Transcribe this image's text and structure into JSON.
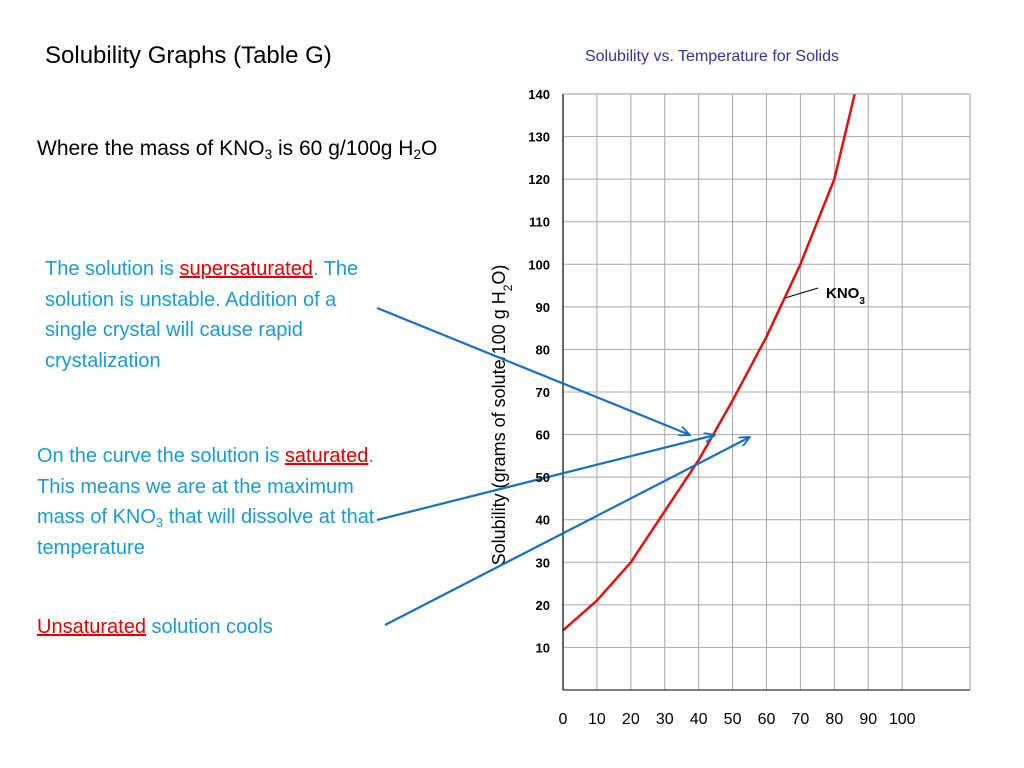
{
  "slide": {
    "title": "Solubility Graphs (Table G)",
    "condition": [
      "Where the mass of KNO",
      "3",
      " is 60 g/100g H",
      "2",
      "O"
    ],
    "notes": [
      {
        "parts": [
          "The solution is ",
          "supersaturated",
          ". The solution is unstable. Addition of a single crystal will cause rapid crystalization"
        ]
      },
      {
        "parts": [
          "On the curve the solution is ",
          "saturated",
          ". This means we are at the maximum mass of KNO",
          "3",
          " that will dissolve at that temperature"
        ]
      },
      {
        "parts": [
          "Unsaturated",
          " solution cools"
        ]
      }
    ]
  },
  "chart_data": {
    "type": "line",
    "title": "Solubility vs. Temperature for Solids",
    "ylabel": [
      "Solubility (grams of solute/100 g H",
      "2",
      "O)"
    ],
    "x": [
      0,
      10,
      20,
      30,
      40,
      50,
      60,
      70,
      80,
      86
    ],
    "series": [
      {
        "label": [
          "KNO",
          "3"
        ],
        "color": "#e01010",
        "values": [
          14,
          21,
          30,
          42,
          54,
          68,
          83,
          100,
          120,
          140
        ]
      }
    ],
    "xlim": [
      0,
      120
    ],
    "xticks": [
      0,
      10,
      20,
      30,
      40,
      50,
      60,
      70,
      80,
      90,
      100
    ],
    "ylim": [
      0,
      140
    ],
    "yticks": [
      10,
      20,
      30,
      40,
      50,
      60,
      70,
      80,
      90,
      100,
      110,
      120,
      130,
      140
    ],
    "grid": true
  }
}
